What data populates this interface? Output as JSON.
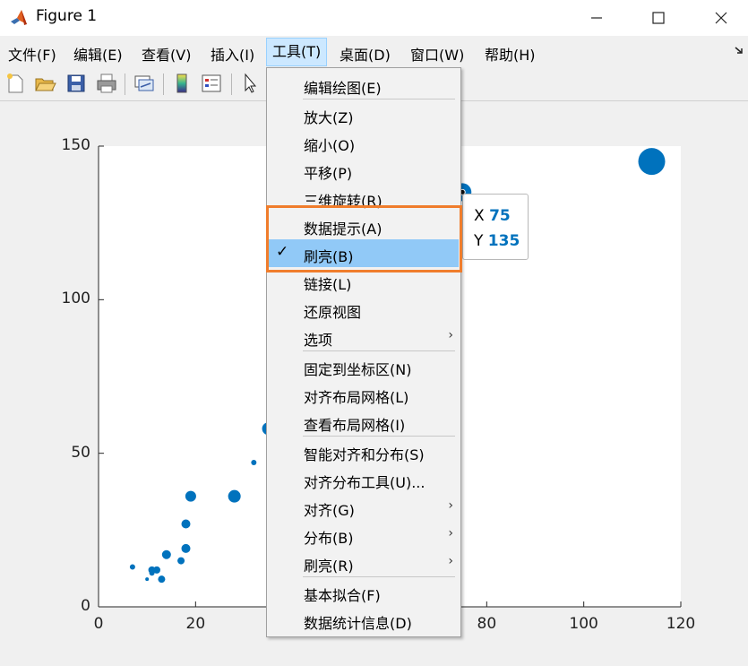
{
  "window": {
    "title": "Figure 1",
    "minimize_icon": "minimize-icon",
    "maximize_icon": "maximize-icon",
    "close_icon": "close-icon"
  },
  "menubar": {
    "items": [
      {
        "label": "文件(F)"
      },
      {
        "label": "编辑(E)"
      },
      {
        "label": "查看(V)"
      },
      {
        "label": "插入(I)"
      },
      {
        "label": "工具(T)",
        "active": true
      },
      {
        "label": "桌面(D)"
      },
      {
        "label": "窗口(W)"
      },
      {
        "label": "帮助(H)"
      }
    ]
  },
  "toolbar": {
    "icons": [
      "new-figure-icon",
      "open-file-icon",
      "save-icon",
      "print-icon",
      "link-plot-icon",
      "colorbar-icon",
      "legend-icon",
      "pointer-icon"
    ]
  },
  "tools_menu": {
    "items": [
      {
        "label": "编辑绘图(E)"
      },
      {
        "label": "放大(Z)"
      },
      {
        "label": "缩小(O)"
      },
      {
        "label": "平移(P)"
      },
      {
        "label": "三维旋转(R)"
      },
      {
        "label": "数据提示(A)"
      },
      {
        "label": "刷亮(B)",
        "checked": true,
        "highlighted": true
      },
      {
        "label": "链接(L)"
      },
      {
        "label": "还原视图"
      },
      {
        "label": "选项",
        "submenu": true
      },
      {
        "label": "固定到坐标区(N)"
      },
      {
        "label": "对齐布局网格(L)"
      },
      {
        "label": "查看布局网格(I)"
      },
      {
        "label": "智能对齐和分布(S)"
      },
      {
        "label": "对齐分布工具(U)..."
      },
      {
        "label": "对齐(G)",
        "submenu": true
      },
      {
        "label": "分布(B)",
        "submenu": true
      },
      {
        "label": "刷亮(R)",
        "submenu": true
      },
      {
        "label": "基本拟合(F)"
      },
      {
        "label": "数据统计信息(D)"
      }
    ],
    "submenu_arrow": "›",
    "check_mark": "✓"
  },
  "datatip": {
    "x_label": "X",
    "x_value": "75",
    "y_label": "Y",
    "y_value": "135"
  },
  "colors": {
    "marker": "#0072bd",
    "highlight": "#91c9f7",
    "annotation_box": "#f07d2c"
  },
  "chart_data": {
    "type": "scatter",
    "title": "",
    "xlabel": "",
    "ylabel": "",
    "xlim": [
      0,
      120
    ],
    "ylim": [
      0,
      150
    ],
    "xticks": [
      0,
      20,
      40,
      60,
      80,
      100,
      120
    ],
    "yticks": [
      0,
      50,
      100,
      150
    ],
    "x_tick_labels_visible": [
      "0",
      "20",
      "80",
      "100",
      "120"
    ],
    "y_tick_labels": [
      "0",
      "50",
      "100",
      "150"
    ],
    "points": [
      {
        "x": 7,
        "y": 13,
        "size": 3
      },
      {
        "x": 10,
        "y": 9,
        "size": 2
      },
      {
        "x": 11,
        "y": 11,
        "size": 3
      },
      {
        "x": 11,
        "y": 12,
        "size": 4
      },
      {
        "x": 12,
        "y": 12,
        "size": 4
      },
      {
        "x": 13,
        "y": 9,
        "size": 4
      },
      {
        "x": 14,
        "y": 17,
        "size": 5
      },
      {
        "x": 17,
        "y": 15,
        "size": 4
      },
      {
        "x": 18,
        "y": 19,
        "size": 5
      },
      {
        "x": 18,
        "y": 27,
        "size": 5
      },
      {
        "x": 19,
        "y": 36,
        "size": 6
      },
      {
        "x": 28,
        "y": 36,
        "size": 7
      },
      {
        "x": 32,
        "y": 47,
        "size": 3
      },
      {
        "x": 35,
        "y": 58,
        "size": 7
      },
      {
        "x": 75,
        "y": 135,
        "size": 10
      },
      {
        "x": 114,
        "y": 145,
        "size": 15
      }
    ],
    "grid": false,
    "legend": "none"
  }
}
